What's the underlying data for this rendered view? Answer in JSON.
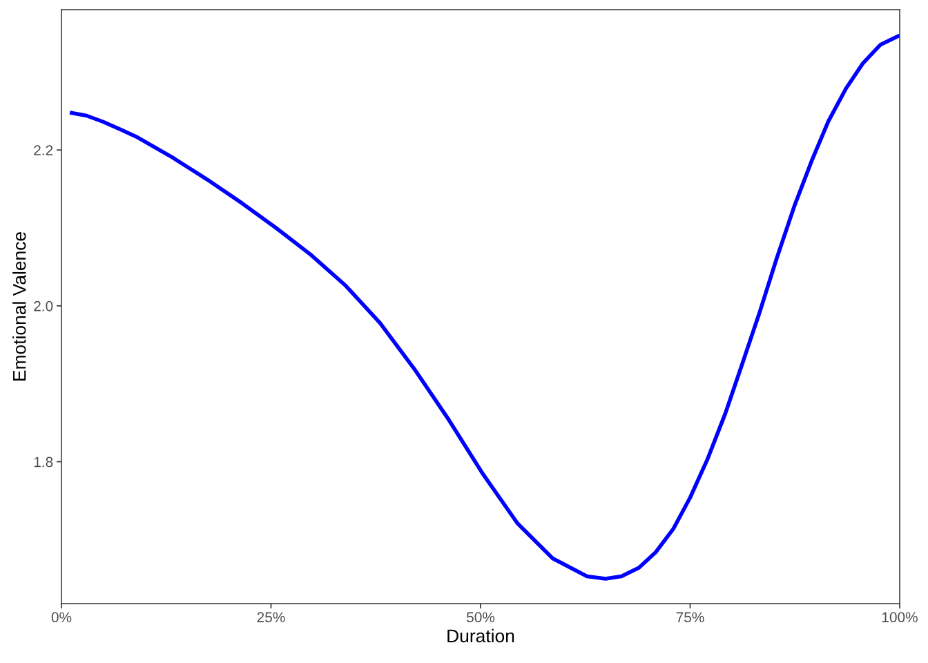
{
  "chart_data": {
    "type": "line",
    "xlabel": "Duration",
    "ylabel": "Emotional Valence",
    "xlim": [
      0,
      100
    ],
    "xticks": [
      {
        "value": 0,
        "label": "0%"
      },
      {
        "value": 25,
        "label": "25%"
      },
      {
        "value": 50,
        "label": "50%"
      },
      {
        "value": 75,
        "label": "75%"
      },
      {
        "value": 100,
        "label": "100%"
      }
    ],
    "ylim": [
      1.618,
      2.38
    ],
    "yticks": [
      {
        "value": 1.8,
        "label": "1.8"
      },
      {
        "value": 2.0,
        "label": "2.0"
      },
      {
        "value": 2.2,
        "label": "2.2"
      }
    ],
    "grid": false,
    "legend": false,
    "marker": "none",
    "line_style": "solid",
    "x": [
      1.0,
      3.0,
      5.0,
      7.1,
      9.1,
      13.3,
      17.4,
      21.5,
      25.6,
      29.7,
      33.9,
      38.0,
      42.1,
      46.2,
      50.3,
      54.4,
      58.6,
      62.7,
      64.9,
      66.8,
      68.9,
      70.9,
      73.0,
      75.0,
      77.1,
      79.2,
      81.2,
      83.3,
      85.3,
      87.4,
      89.5,
      91.5,
      93.6,
      95.6,
      97.7,
      100
    ],
    "series": [
      {
        "color": "#0000ff",
        "values": [
          2.248,
          2.244,
          2.236,
          2.226,
          2.216,
          2.19,
          2.162,
          2.132,
          2.1,
          2.066,
          2.026,
          1.978,
          1.919,
          1.854,
          1.784,
          1.721,
          1.676,
          1.653,
          1.65,
          1.653,
          1.664,
          1.684,
          1.714,
          1.754,
          1.804,
          1.862,
          1.925,
          1.992,
          2.06,
          2.127,
          2.186,
          2.237,
          2.279,
          2.311,
          2.335,
          2.347
        ]
      }
    ]
  }
}
